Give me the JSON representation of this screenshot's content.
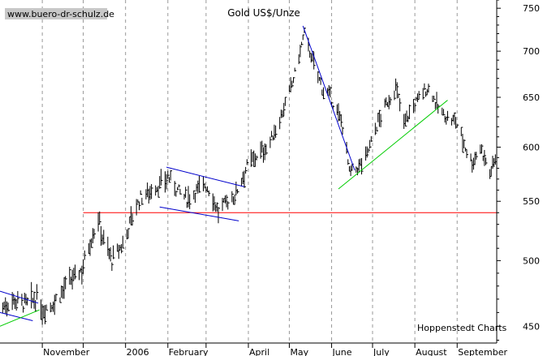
{
  "chart_data": {
    "type": "ohlc-bar",
    "title": "Gold US$/Unze",
    "watermark": "www.buero-dr-schulz.de",
    "source_label": "Hoppenstedt Charts",
    "y_scale": "log",
    "ylim": [
      438,
      760
    ],
    "y_ticks": [
      450,
      500,
      550,
      600,
      650,
      700,
      750
    ],
    "x_range": [
      "2005-10-01",
      "2006-09-30"
    ],
    "month_labels": [
      {
        "label": "November",
        "date": "2005-11-01"
      },
      {
        "label": "2006",
        "date": "2006-01-01"
      },
      {
        "label": "February",
        "date": "2006-02-01"
      },
      {
        "label": "April",
        "date": "2006-04-01"
      },
      {
        "label": "May",
        "date": "2006-05-01"
      },
      {
        "label": "June",
        "date": "2006-06-01"
      },
      {
        "label": "July",
        "date": "2006-07-01"
      },
      {
        "label": "August",
        "date": "2006-08-01"
      },
      {
        "label": "September",
        "date": "2006-09-01"
      }
    ],
    "month_boundaries": [
      "2005-11-01",
      "2005-12-01",
      "2006-01-01",
      "2006-02-01",
      "2006-03-01",
      "2006-04-01",
      "2006-05-01",
      "2006-06-01",
      "2006-07-01",
      "2006-08-01",
      "2006-09-01"
    ],
    "price_path": [
      [
        "2005-10-01",
        462
      ],
      [
        "2005-10-10",
        470
      ],
      [
        "2005-10-20",
        466
      ],
      [
        "2005-10-28",
        470
      ],
      [
        "2005-11-01",
        462
      ],
      [
        "2005-11-10",
        468
      ],
      [
        "2005-11-20",
        482
      ],
      [
        "2005-11-30",
        493
      ],
      [
        "2005-12-05",
        512
      ],
      [
        "2005-12-12",
        535
      ],
      [
        "2005-12-15",
        520
      ],
      [
        "2005-12-22",
        500
      ],
      [
        "2005-12-31",
        515
      ],
      [
        "2006-01-05",
        535
      ],
      [
        "2006-01-12",
        553
      ],
      [
        "2006-01-20",
        560
      ],
      [
        "2006-01-27",
        565
      ],
      [
        "2006-02-01",
        572
      ],
      [
        "2006-02-08",
        560
      ],
      [
        "2006-02-15",
        552
      ],
      [
        "2006-02-22",
        560
      ],
      [
        "2006-02-28",
        565
      ],
      [
        "2006-03-05",
        557
      ],
      [
        "2006-03-10",
        540
      ],
      [
        "2006-03-15",
        548
      ],
      [
        "2006-03-22",
        555
      ],
      [
        "2006-03-31",
        582
      ],
      [
        "2006-04-07",
        592
      ],
      [
        "2006-04-15",
        600
      ],
      [
        "2006-04-22",
        620
      ],
      [
        "2006-04-30",
        650
      ],
      [
        "2006-05-05",
        675
      ],
      [
        "2006-05-12",
        720
      ],
      [
        "2006-05-18",
        690
      ],
      [
        "2006-05-25",
        660
      ],
      [
        "2006-05-31",
        650
      ],
      [
        "2006-06-05",
        635
      ],
      [
        "2006-06-10",
        618
      ],
      [
        "2006-06-14",
        575
      ],
      [
        "2006-06-20",
        580
      ],
      [
        "2006-06-26",
        590
      ],
      [
        "2006-06-30",
        605
      ],
      [
        "2006-07-05",
        625
      ],
      [
        "2006-07-12",
        645
      ],
      [
        "2006-07-18",
        660
      ],
      [
        "2006-07-24",
        625
      ],
      [
        "2006-07-31",
        640
      ],
      [
        "2006-08-06",
        655
      ],
      [
        "2006-08-12",
        660
      ],
      [
        "2006-08-18",
        638
      ],
      [
        "2006-08-25",
        628
      ],
      [
        "2006-08-31",
        625
      ],
      [
        "2006-09-03",
        615
      ],
      [
        "2006-09-07",
        600
      ],
      [
        "2006-09-12",
        585
      ],
      [
        "2006-09-18",
        600
      ],
      [
        "2006-09-21",
        590
      ],
      [
        "2006-09-25",
        575
      ],
      [
        "2006-09-28",
        585
      ],
      [
        "2006-09-30",
        595
      ]
    ],
    "horizontal_line": {
      "value": 540,
      "color": "#ff0000"
    },
    "trend_lines": [
      {
        "color": "#0000cc",
        "from": [
          "2005-10-01",
          476
        ],
        "to": [
          "2005-10-29",
          467
        ]
      },
      {
        "color": "#0000cc",
        "from": [
          "2005-10-01",
          460
        ],
        "to": [
          "2005-10-25",
          454
        ]
      },
      {
        "color": "#00cc00",
        "from": [
          "2005-10-01",
          450
        ],
        "to": [
          "2005-10-30",
          462
        ]
      },
      {
        "color": "#0000cc",
        "from": [
          "2006-01-31",
          581
        ],
        "to": [
          "2006-03-29",
          563
        ]
      },
      {
        "color": "#0000cc",
        "from": [
          "2006-01-26",
          545
        ],
        "to": [
          "2006-03-25",
          533
        ]
      },
      {
        "color": "#0000cc",
        "from": [
          "2006-05-11",
          729
        ],
        "to": [
          "2006-06-18",
          578
        ]
      },
      {
        "color": "#00cc00",
        "from": [
          "2006-06-06",
          561
        ],
        "to": [
          "2006-08-25",
          647
        ]
      }
    ],
    "colors": {
      "bars": "#000000",
      "grid": "#999999",
      "axis": "#000000"
    },
    "grid": "vertical dashed at month boundaries"
  }
}
